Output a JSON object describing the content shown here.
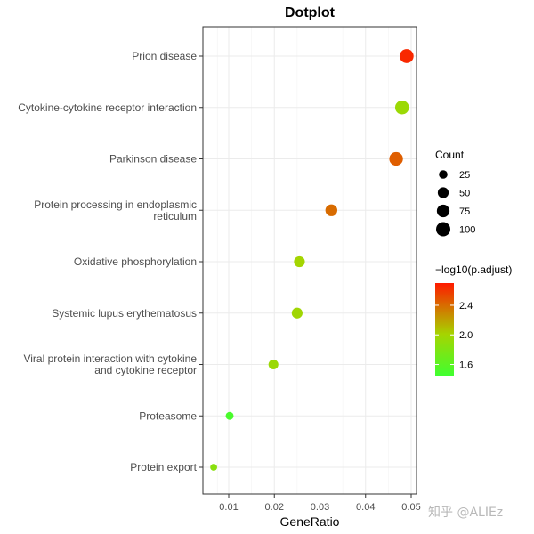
{
  "chart_data": {
    "type": "scatter",
    "title": "Dotplot",
    "xlabel": "GeneRatio",
    "ylabel": "",
    "xlim": [
      0.0055,
      0.051
    ],
    "x_ticks": [
      0.01,
      0.02,
      0.03,
      0.04,
      0.05
    ],
    "x_tick_labels": [
      "0.01",
      "0.02",
      "0.03",
      "0.04",
      "0.05"
    ],
    "grid": true,
    "legend_position": "right",
    "categories": [
      "Prion disease",
      "Cytokine-cytokine receptor interaction",
      "Parkinson disease",
      "Protein processing in endoplasmic reticulum",
      "Oxidative phosphorylation",
      "Systemic lupus erythematosus",
      "Viral protein interaction with cytokine and cytokine receptor",
      "Proteasome",
      "Protein export"
    ],
    "category_labels": [
      [
        "Prion disease"
      ],
      [
        "Cytokine-cytokine receptor interaction"
      ],
      [
        "Parkinson disease"
      ],
      [
        "Protein processing in endoplasmic",
        "reticulum"
      ],
      [
        "Oxidative phosphorylation"
      ],
      [
        "Systemic lupus erythematosus"
      ],
      [
        "Viral protein interaction with cytokine",
        "and cytokine receptor"
      ],
      [
        "Proteasome"
      ],
      [
        "Protein export"
      ]
    ],
    "points": [
      {
        "category": "Prion disease",
        "gene_ratio": 0.049,
        "count": 95,
        "neg_log10_padj": 2.65
      },
      {
        "category": "Cytokine-cytokine receptor interaction",
        "gene_ratio": 0.048,
        "count": 93,
        "neg_log10_padj": 1.95
      },
      {
        "category": "Parkinson disease",
        "gene_ratio": 0.0467,
        "count": 90,
        "neg_log10_padj": 2.45
      },
      {
        "category": "Protein processing in endoplasmic reticulum",
        "gene_ratio": 0.0325,
        "count": 63,
        "neg_log10_padj": 2.4
      },
      {
        "category": "Oxidative phosphorylation",
        "gene_ratio": 0.0255,
        "count": 50,
        "neg_log10_padj": 2.0
      },
      {
        "category": "Systemic lupus erythematosus",
        "gene_ratio": 0.025,
        "count": 49,
        "neg_log10_padj": 1.98
      },
      {
        "category": "Viral protein interaction with cytokine and cytokine receptor",
        "gene_ratio": 0.0198,
        "count": 38,
        "neg_log10_padj": 1.95
      },
      {
        "category": "Proteasome",
        "gene_ratio": 0.0102,
        "count": 20,
        "neg_log10_padj": 1.5
      },
      {
        "category": "Protein export",
        "gene_ratio": 0.0067,
        "count": 13,
        "neg_log10_padj": 1.85
      }
    ],
    "size_legend": {
      "title": "Count",
      "values": [
        25,
        50,
        75,
        100
      ],
      "labels": [
        "25",
        "50",
        "75",
        "100"
      ]
    },
    "color_legend": {
      "title": "−log10(p.adjust)",
      "range": [
        1.45,
        2.7
      ],
      "ticks": [
        1.6,
        2.0,
        2.4
      ],
      "tick_labels": [
        "1.6",
        "2.0",
        "2.4"
      ],
      "low_color": "#40ff30",
      "high_color": "#ff1a00"
    }
  },
  "watermark": "知乎 @ALIEz"
}
